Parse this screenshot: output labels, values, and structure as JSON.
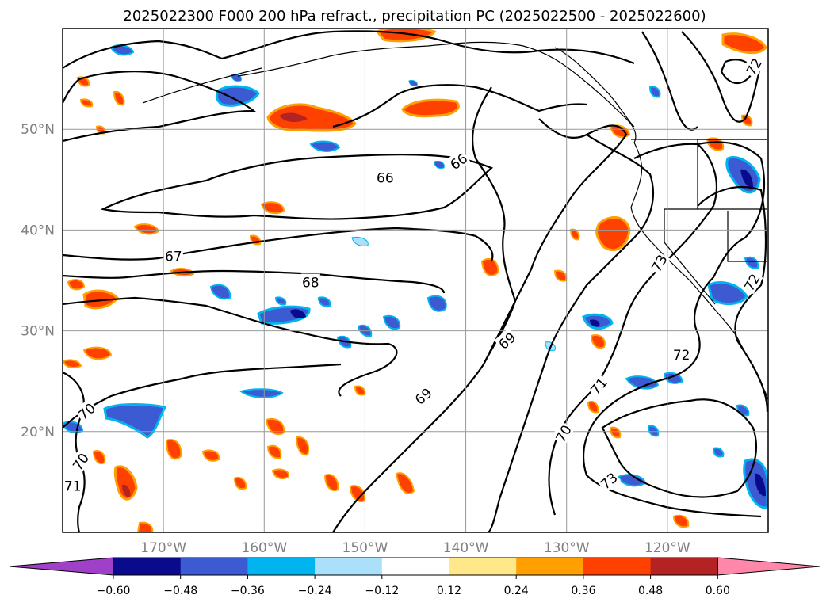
{
  "title": "2025022300 F000 200 hPa refract., precipitation PC (2025022500 - 2025022600)",
  "map": {
    "extent": {
      "lon_min": -180,
      "lon_max": -110,
      "lat_min": 10,
      "lat_max": 60
    },
    "lat_ticks": [
      {
        "value": 50,
        "label": "50°N"
      },
      {
        "value": 40,
        "label": "40°N"
      },
      {
        "value": 30,
        "label": "30°N"
      },
      {
        "value": 20,
        "label": "20°N"
      }
    ],
    "lon_ticks": [
      {
        "value": -170,
        "label": "170°W"
      },
      {
        "value": -160,
        "label": "160°W"
      },
      {
        "value": -150,
        "label": "150°W"
      },
      {
        "value": -140,
        "label": "140°W"
      },
      {
        "value": -130,
        "label": "130°W"
      },
      {
        "value": -120,
        "label": "120°W"
      }
    ],
    "gridlines": true,
    "contour_labels": [
      {
        "text": "66",
        "lon": -148,
        "lat": 45.2
      },
      {
        "text": "66",
        "lon": -140.7,
        "lat": 46.8,
        "rot": -35
      },
      {
        "text": "67",
        "lon": -169,
        "lat": 37.4
      },
      {
        "text": "68",
        "lon": -155.4,
        "lat": 34.8
      },
      {
        "text": "69",
        "lon": -135.9,
        "lat": 29,
        "rot": -40
      },
      {
        "text": "69",
        "lon": -144.2,
        "lat": 23.5,
        "rot": -40
      },
      {
        "text": "70",
        "lon": -130.3,
        "lat": 19.8,
        "rot": -60
      },
      {
        "text": "70",
        "lon": -177.6,
        "lat": 22,
        "rot": -40
      },
      {
        "text": "70",
        "lon": -178.2,
        "lat": 17,
        "rot": -55
      },
      {
        "text": "71",
        "lon": -179,
        "lat": 14.6
      },
      {
        "text": "71",
        "lon": -126.8,
        "lat": 24.5,
        "rot": -50
      },
      {
        "text": "72",
        "lon": -118.6,
        "lat": 27.6
      },
      {
        "text": "72",
        "lon": -111.6,
        "lat": 34.8,
        "rot": -60
      },
      {
        "text": "72",
        "lon": -111.4,
        "lat": 56.2,
        "rot": -60
      },
      {
        "text": "73",
        "lon": -125.8,
        "lat": 15.1,
        "rot": -40
      },
      {
        "text": "73",
        "lon": -120.8,
        "lat": 36.7,
        "rot": -60
      }
    ]
  },
  "colorbar": {
    "tick_labels": [
      "−0.60",
      "−0.48",
      "−0.36",
      "−0.24",
      "−0.12",
      "0.12",
      "0.24",
      "0.36",
      "0.48",
      "0.60"
    ],
    "colors": [
      "#a040c8",
      "#0a0a8c",
      "#3c5ad2",
      "#00b4f0",
      "#aae0fa",
      "#ffffff",
      "#ffe88a",
      "#ffa000",
      "#ff4100",
      "#b42323",
      "#ff88aa"
    ]
  }
}
